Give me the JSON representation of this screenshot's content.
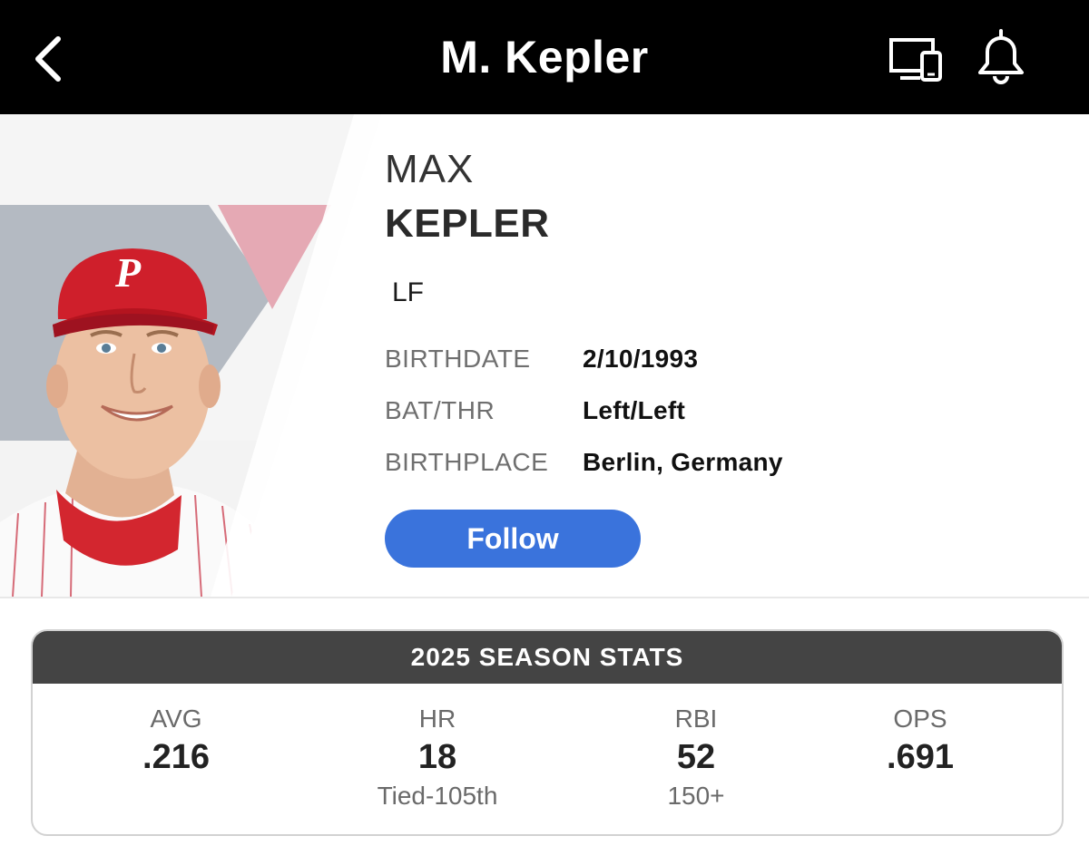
{
  "header": {
    "title": "M. Kepler",
    "back_icon": "chevron-left-icon",
    "devices_icon": "devices-icon",
    "bell_icon": "bell-icon"
  },
  "player": {
    "first_name": "MAX",
    "last_name": "KEPLER",
    "position": "LF",
    "bio": [
      {
        "label": "BIRTHDATE",
        "value": "2/10/1993"
      },
      {
        "label": "BAT/THR",
        "value": "Left/Left"
      },
      {
        "label": "BIRTHPLACE",
        "value": "Berlin, Germany"
      }
    ],
    "follow_label": "Follow"
  },
  "stats": {
    "title": "2025 SEASON STATS",
    "items": [
      {
        "label": "AVG",
        "value": ".216",
        "rank": ""
      },
      {
        "label": "HR",
        "value": "18",
        "rank": "Tied-105th"
      },
      {
        "label": "RBI",
        "value": "52",
        "rank": "150+"
      },
      {
        "label": "OPS",
        "value": ".691",
        "rank": ""
      }
    ]
  },
  "colors": {
    "header_bg": "#000000",
    "follow_button": "#3a73dc",
    "stats_header_bg": "#444444",
    "team_red": "#c8102e"
  }
}
